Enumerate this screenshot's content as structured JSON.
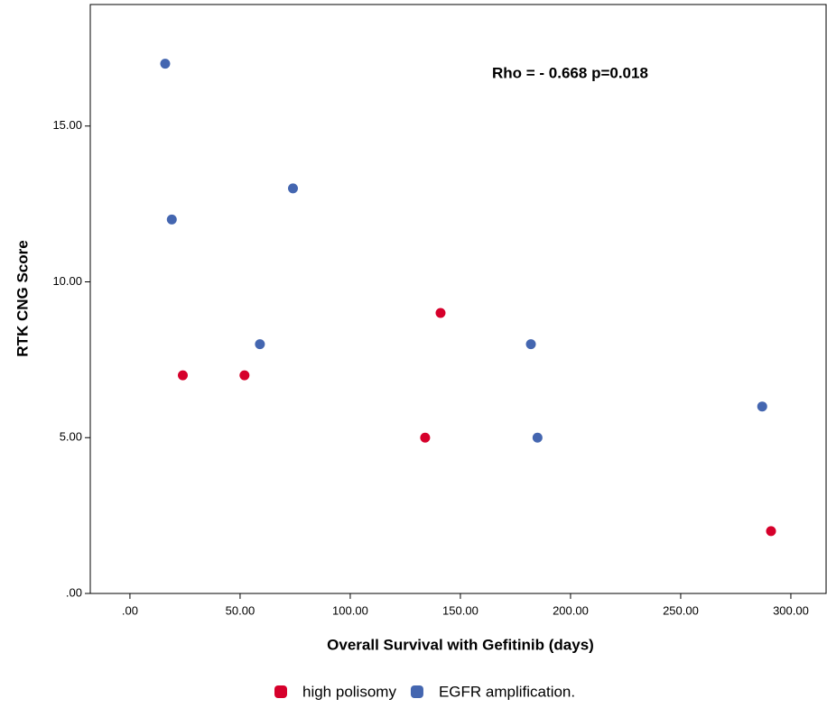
{
  "chart_data": {
    "type": "scatter",
    "annotation": "Rho = - 0.668 p=0.018",
    "x_label": "Overall Survival with Gefitinib (days)",
    "y_label": "RTK CNG Score",
    "xlim": [
      -18,
      316
    ],
    "ylim": [
      0,
      18.9
    ],
    "xticks": [
      {
        "value": 0,
        "label": ".00"
      },
      {
        "value": 50,
        "label": "50.00"
      },
      {
        "value": 100,
        "label": "100.00"
      },
      {
        "value": 150,
        "label": "150.00"
      },
      {
        "value": 200,
        "label": "200.00"
      },
      {
        "value": 250,
        "label": "250.00"
      },
      {
        "value": 300,
        "label": "300.00"
      }
    ],
    "yticks": [
      {
        "value": 0,
        "label": ".00"
      },
      {
        "value": 5,
        "label": "5.00"
      },
      {
        "value": 10,
        "label": "10.00"
      },
      {
        "value": 15,
        "label": "15.00"
      }
    ],
    "series": [
      {
        "name": "high polisomy",
        "color": "#d6002b",
        "x": [
          24,
          52,
          141,
          134,
          291
        ],
        "values": [
          7,
          7,
          9,
          5,
          2
        ]
      },
      {
        "name": "EGFR amplification.",
        "color": "#4466b0",
        "x": [
          16,
          19,
          74,
          59,
          182,
          185,
          287
        ],
        "values": [
          17,
          12,
          13,
          8,
          8,
          5,
          6
        ]
      }
    ]
  }
}
